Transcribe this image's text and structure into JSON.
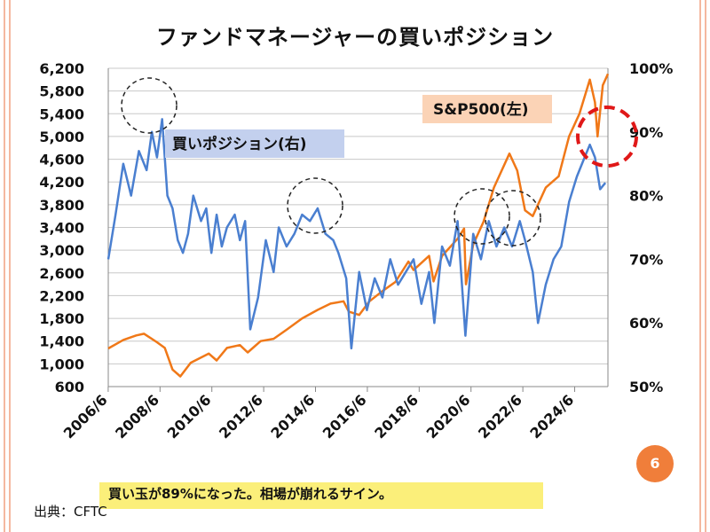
{
  "title": "ファンドマネージャーの買いポジション",
  "page_number": "6",
  "bottom_note": "買い玉が89%になった。相場が崩れるサイン。",
  "source": "出典：CFTC",
  "colors": {
    "sp500": "#f07818",
    "position": "#4a7fd0",
    "highlight_circle": "#e01818",
    "frame": "#f4b8a0"
  },
  "chart_data": {
    "type": "line",
    "title": "ファンドマネージャーの買いポジション",
    "x_ticks": [
      "2006/6",
      "2008/6",
      "2010/6",
      "2012/6",
      "2014/6",
      "2016/6",
      "2018/6",
      "2020/6",
      "2022/6",
      "2024/6"
    ],
    "x_range": [
      2006.42,
      2025.7
    ],
    "left_axis": {
      "ticks": [
        "6,200",
        "5,800",
        "5,400",
        "5,000",
        "4,600",
        "4,200",
        "3,800",
        "3,400",
        "3,000",
        "2,600",
        "2,200",
        "1,800",
        "1,400",
        "1,000",
        "600"
      ],
      "range": [
        600,
        6200
      ]
    },
    "right_axis": {
      "ticks": [
        "100%",
        "90%",
        "80%",
        "70%",
        "60%",
        "50%"
      ],
      "range": [
        50,
        100
      ]
    },
    "grid": true,
    "series": [
      {
        "name": "S&P500(左)",
        "axis": "left",
        "x": [
          2006.42,
          2007.0,
          2007.5,
          2007.8,
          2008.3,
          2008.6,
          2008.9,
          2009.2,
          2009.6,
          2010.3,
          2010.6,
          2011.0,
          2011.5,
          2011.8,
          2012.3,
          2012.8,
          2013.3,
          2013.9,
          2014.5,
          2015.0,
          2015.5,
          2015.7,
          2016.1,
          2016.5,
          2017.0,
          2017.5,
          2018.0,
          2018.2,
          2018.8,
          2018.97,
          2019.3,
          2019.9,
          2020.15,
          2020.22,
          2020.5,
          2020.9,
          2021.3,
          2021.9,
          2022.2,
          2022.5,
          2022.8,
          2023.3,
          2023.8,
          2024.2,
          2024.6,
          2025.0,
          2025.2,
          2025.3,
          2025.5,
          2025.7
        ],
        "values": [
          1270,
          1420,
          1500,
          1530,
          1380,
          1280,
          900,
          780,
          1020,
          1180,
          1060,
          1280,
          1330,
          1200,
          1400,
          1440,
          1600,
          1800,
          1950,
          2060,
          2100,
          1920,
          1860,
          2100,
          2280,
          2440,
          2800,
          2650,
          2900,
          2450,
          2900,
          3200,
          3380,
          2400,
          3100,
          3500,
          4100,
          4700,
          4400,
          3700,
          3600,
          4100,
          4300,
          5000,
          5400,
          6000,
          5600,
          5000,
          5900,
          6100
        ]
      },
      {
        "name": "買いポジション(右)",
        "axis": "right",
        "x": [
          2006.42,
          2006.7,
          2007.0,
          2007.3,
          2007.6,
          2007.9,
          2008.1,
          2008.3,
          2008.5,
          2008.7,
          2008.9,
          2009.1,
          2009.3,
          2009.5,
          2009.7,
          2010.0,
          2010.2,
          2010.4,
          2010.6,
          2010.8,
          2011.0,
          2011.3,
          2011.5,
          2011.7,
          2011.9,
          2012.2,
          2012.5,
          2012.8,
          2013.0,
          2013.3,
          2013.6,
          2013.9,
          2014.2,
          2014.5,
          2014.8,
          2015.1,
          2015.3,
          2015.6,
          2015.8,
          2016.1,
          2016.4,
          2016.7,
          2017.0,
          2017.3,
          2017.6,
          2017.9,
          2018.2,
          2018.5,
          2018.8,
          2019.0,
          2019.3,
          2019.6,
          2019.9,
          2020.1,
          2020.2,
          2020.5,
          2020.8,
          2021.1,
          2021.4,
          2021.7,
          2022.0,
          2022.3,
          2022.5,
          2022.8,
          2023.0,
          2023.3,
          2023.6,
          2023.9,
          2024.2,
          2024.5,
          2024.8,
          2025.0,
          2025.2,
          2025.4,
          2025.6
        ],
        "values": [
          70,
          77,
          85,
          80,
          87,
          84,
          90,
          86,
          92,
          80,
          78,
          73,
          71,
          74,
          80,
          76,
          78,
          71,
          77,
          72,
          75,
          77,
          73,
          76,
          59,
          64,
          73,
          68,
          75,
          72,
          74,
          77,
          76,
          78,
          74,
          73,
          71,
          67,
          56,
          68,
          62,
          67,
          64,
          70,
          66,
          68,
          70,
          63,
          68,
          60,
          72,
          69,
          76,
          64,
          58,
          74,
          70,
          76,
          72,
          75,
          72,
          76,
          73,
          68,
          60,
          66,
          70,
          72,
          79,
          83,
          86,
          88,
          86,
          81,
          82
        ]
      }
    ],
    "annotations": {
      "sp500_label": "S&P500(左)",
      "position_label": "買いポジション(右)"
    }
  }
}
